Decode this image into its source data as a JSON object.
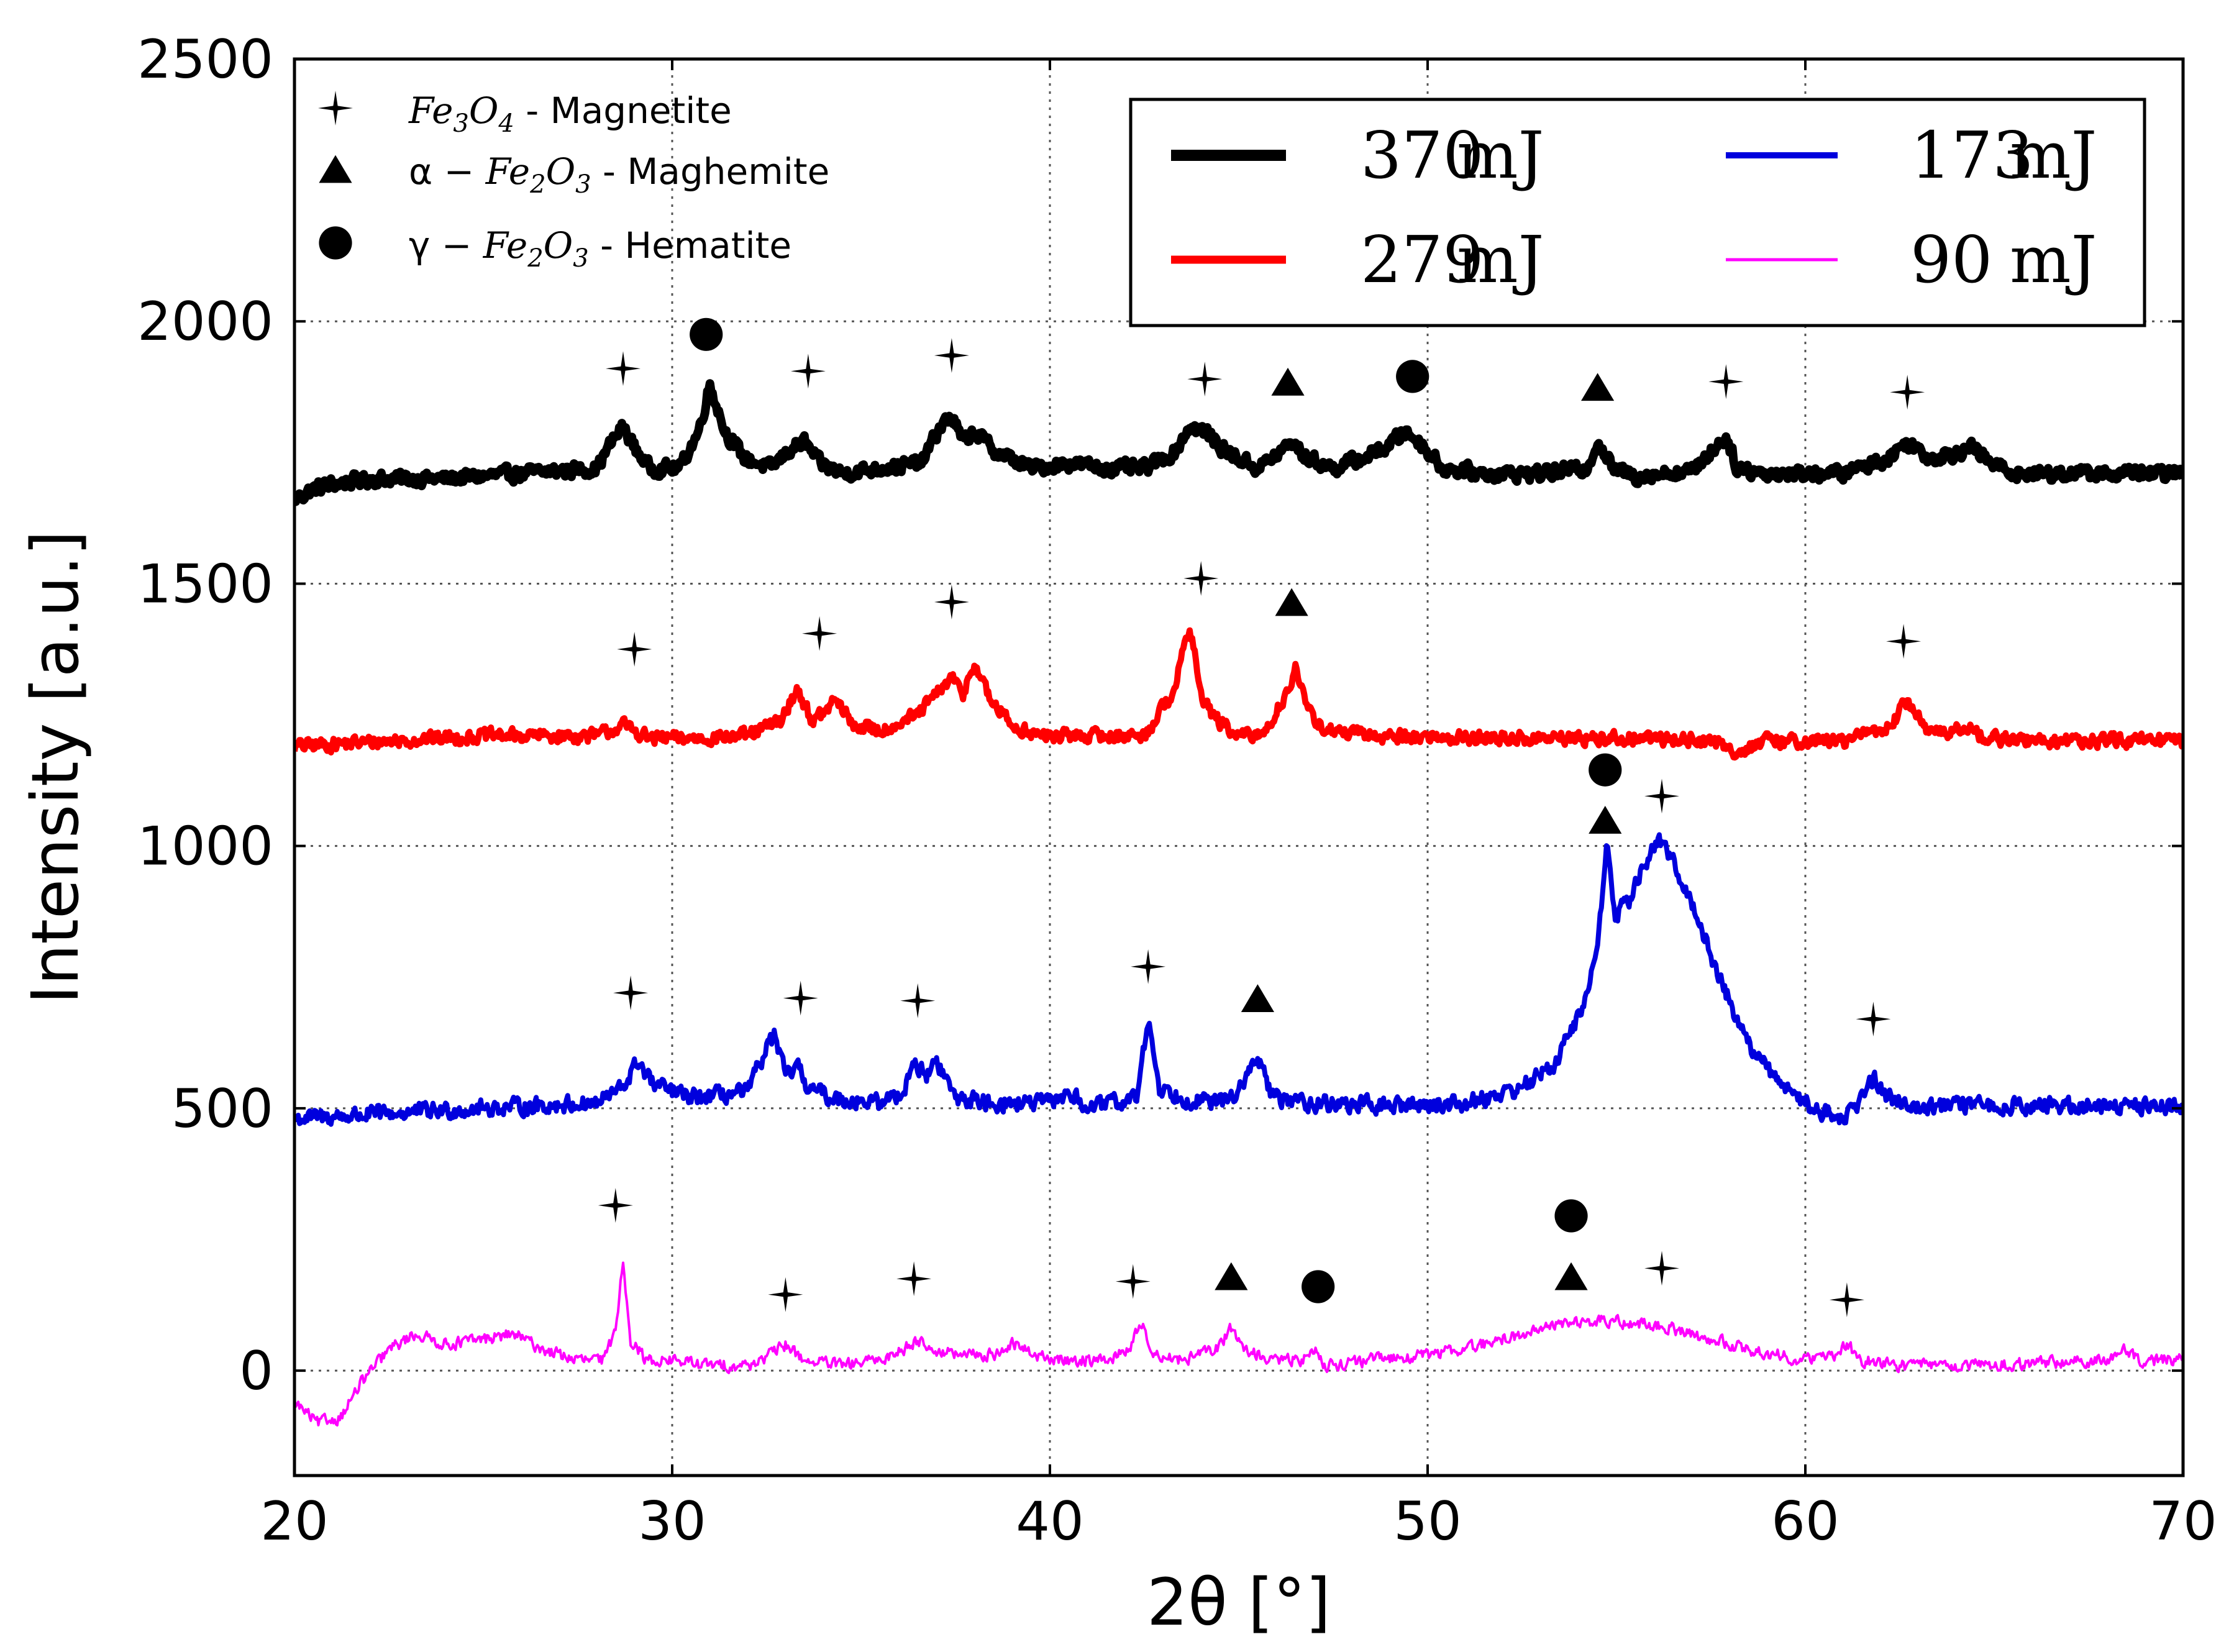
{
  "chart_data": {
    "type": "line",
    "xlabel": "2θ [°]",
    "ylabel": "Intensity [a.u.]",
    "xlim": [
      20,
      70
    ],
    "ylim": [
      -200,
      2500
    ],
    "xticks": [
      20,
      30,
      40,
      50,
      60,
      70
    ],
    "yticks": [
      0,
      500,
      1000,
      1500,
      2000,
      2500
    ],
    "grid": true,
    "legend_position": "top-right",
    "series": [
      {
        "name": "370 mJ",
        "label_num": "370",
        "label_unit": "mJ",
        "color": "#000000",
        "baseline": 1700,
        "noise": 18,
        "x": [
          20,
          20.5,
          21,
          22,
          24,
          26,
          28,
          28.4,
          28.7,
          29.0,
          29.4,
          30.2,
          30.7,
          31.0,
          31.4,
          31.9,
          32.6,
          33.2,
          33.5,
          33.9,
          34.5,
          35.5,
          36.6,
          37.1,
          37.4,
          37.7,
          38.0,
          38.6,
          39.5,
          40.5,
          41.5,
          42.5,
          43.3,
          43.7,
          44.1,
          44.7,
          45.5,
          46.1,
          46.4,
          46.8,
          47.5,
          48.3,
          48.9,
          49.4,
          49.8,
          50.4,
          51.5,
          53,
          54.2,
          54.5,
          54.9,
          55.5,
          57.0,
          57.6,
          57.9,
          58.2,
          59.0,
          61,
          62.2,
          62.7,
          63.3,
          64.0,
          64.4,
          64.9,
          65.6,
          67,
          70
        ],
        "y": [
          1660,
          1680,
          1690,
          1700,
          1700,
          1710,
          1720,
          1770,
          1800,
          1760,
          1720,
          1720,
          1790,
          1880,
          1790,
          1740,
          1720,
          1760,
          1770,
          1730,
          1710,
          1720,
          1730,
          1800,
          1820,
          1770,
          1790,
          1750,
          1720,
          1730,
          1720,
          1720,
          1750,
          1800,
          1790,
          1750,
          1720,
          1750,
          1770,
          1740,
          1720,
          1740,
          1760,
          1790,
          1770,
          1720,
          1710,
          1710,
          1720,
          1770,
          1720,
          1705,
          1715,
          1760,
          1780,
          1720,
          1710,
          1710,
          1740,
          1770,
          1740,
          1750,
          1760,
          1730,
          1710,
          1710,
          1710
        ]
      },
      {
        "name": "279 mJ",
        "label_num": "279",
        "label_unit": "mJ",
        "color": "#ff0000",
        "baseline": 1200,
        "noise": 18,
        "x": [
          20,
          25,
          28,
          28.7,
          29.0,
          29.4,
          30.5,
          32,
          32.9,
          33.3,
          33.7,
          34.0,
          34.3,
          34.8,
          35.5,
          36.5,
          37.0,
          37.4,
          37.7,
          38.0,
          38.4,
          39.0,
          39.7,
          41,
          42.5,
          43.3,
          43.7,
          44.0,
          44.3,
          44.9,
          45.6,
          46.2,
          46.5,
          46.8,
          47.3,
          48.5,
          52,
          56,
          57.5,
          58.2,
          59,
          61,
          62.3,
          62.7,
          63.1,
          63.7,
          64.2,
          64.8,
          66,
          70
        ],
        "y": [
          1190,
          1210,
          1210,
          1230,
          1220,
          1205,
          1205,
          1210,
          1240,
          1300,
          1240,
          1250,
          1280,
          1230,
          1220,
          1250,
          1290,
          1320,
          1290,
          1350,
          1280,
          1230,
          1210,
          1210,
          1210,
          1300,
          1420,
          1290,
          1250,
          1210,
          1210,
          1280,
          1340,
          1260,
          1220,
          1210,
          1205,
          1205,
          1200,
          1180,
          1200,
          1200,
          1230,
          1280,
          1230,
          1210,
          1230,
          1205,
          1200,
          1200
        ]
      },
      {
        "name": "173 mJ",
        "label_num": "173",
        "label_unit": "mJ",
        "color": "#0000dd",
        "baseline": 500,
        "noise": 22,
        "x": [
          20,
          25,
          28,
          28.7,
          29.1,
          29.5,
          30.5,
          32,
          32.4,
          32.7,
          33.0,
          33.3,
          33.6,
          34.2,
          35.5,
          36.1,
          36.4,
          36.7,
          37.0,
          37.5,
          38.5,
          40.0,
          40.5,
          41,
          42.3,
          42.6,
          42.9,
          43.5,
          44.5,
          45.1,
          45.5,
          45.9,
          47,
          49,
          51,
          52.5,
          53.3,
          53.9,
          54.3,
          54.6,
          54.75,
          54.95,
          55.3,
          55.7,
          56.1,
          56.6,
          57.2,
          57.9,
          58.5,
          59.2,
          60.2,
          61.0,
          61.5,
          61.8,
          62.2,
          63,
          66,
          70
        ],
        "y": [
          480,
          500,
          510,
          540,
          590,
          545,
          520,
          530,
          600,
          640,
          560,
          580,
          540,
          520,
          510,
          530,
          590,
          560,
          590,
          520,
          510,
          510,
          530,
          500,
          520,
          670,
          540,
          520,
          510,
          540,
          600,
          520,
          510,
          505,
          510,
          540,
          580,
          660,
          730,
          880,
          1000,
          870,
          890,
          960,
          1010,
          960,
          850,
          720,
          620,
          560,
          500,
          480,
          520,
          560,
          520,
          505,
          505,
          505
        ]
      },
      {
        "name": "90 mJ",
        "label_num": "90",
        "label_unit": "mJ",
        "color": "#ff00ff",
        "baseline": 0,
        "noise": 16,
        "x": [
          20,
          20.6,
          21.2,
          21.8,
          22.5,
          23.2,
          24,
          25,
          25.8,
          26.6,
          27.5,
          28.2,
          28.5,
          28.7,
          28.9,
          29.3,
          30,
          31,
          32,
          32.6,
          33.0,
          33.5,
          34.5,
          35.5,
          36.1,
          36.5,
          36.9,
          37.5,
          38.5,
          39.0,
          40,
          41.5,
          42.1,
          42.4,
          42.8,
          43.5,
          44.4,
          44.8,
          45.2,
          45.8,
          46.7,
          47.0,
          47.3,
          48.5,
          50,
          51.5,
          52.5,
          53.5,
          54.5,
          55.5,
          56.5,
          57.5,
          58.5,
          60,
          60.8,
          61.1,
          61.5,
          62.5,
          65,
          68.0,
          68.4,
          68.8,
          70
        ],
        "y": [
          -60,
          -100,
          -90,
          -20,
          40,
          70,
          50,
          60,
          70,
          40,
          20,
          20,
          80,
          210,
          60,
          20,
          20,
          10,
          10,
          30,
          50,
          20,
          10,
          20,
          40,
          60,
          40,
          30,
          30,
          50,
          20,
          20,
          40,
          90,
          30,
          20,
          40,
          80,
          40,
          20,
          20,
          40,
          10,
          20,
          30,
          50,
          70,
          90,
          95,
          90,
          80,
          60,
          40,
          20,
          30,
          50,
          20,
          10,
          10,
          20,
          40,
          20,
          20
        ]
      }
    ],
    "phase_legend": [
      {
        "symbol": "star",
        "prefix": "",
        "formula": "Fe3O4",
        "suffix": " - Magnetite"
      },
      {
        "symbol": "triangle",
        "prefix": "α − ",
        "formula": "Fe2O3",
        "suffix": " - Maghemite"
      },
      {
        "symbol": "circle",
        "prefix": "γ − ",
        "formula": "Fe2O3",
        "suffix": " - Hematite"
      }
    ],
    "phase_markers": [
      {
        "series": "370 mJ",
        "symbol": "star",
        "x": 28.7,
        "y": 1910
      },
      {
        "series": "370 mJ",
        "symbol": "circle",
        "x": 30.9,
        "y": 1975
      },
      {
        "series": "370 mJ",
        "symbol": "star",
        "x": 33.6,
        "y": 1905
      },
      {
        "series": "370 mJ",
        "symbol": "star",
        "x": 37.4,
        "y": 1935
      },
      {
        "series": "370 mJ",
        "symbol": "star",
        "x": 44.1,
        "y": 1890
      },
      {
        "series": "370 mJ",
        "symbol": "triangle",
        "x": 46.3,
        "y": 1885
      },
      {
        "series": "370 mJ",
        "symbol": "circle",
        "x": 49.6,
        "y": 1895
      },
      {
        "series": "370 mJ",
        "symbol": "triangle",
        "x": 54.5,
        "y": 1875
      },
      {
        "series": "370 mJ",
        "symbol": "star",
        "x": 57.9,
        "y": 1885
      },
      {
        "series": "370 mJ",
        "symbol": "star",
        "x": 62.7,
        "y": 1865
      },
      {
        "series": "279 mJ",
        "symbol": "star",
        "x": 29.0,
        "y": 1375
      },
      {
        "series": "279 mJ",
        "symbol": "star",
        "x": 33.9,
        "y": 1405
      },
      {
        "series": "279 mJ",
        "symbol": "star",
        "x": 37.4,
        "y": 1465
      },
      {
        "series": "279 mJ",
        "symbol": "star",
        "x": 44.0,
        "y": 1510
      },
      {
        "series": "279 mJ",
        "symbol": "triangle",
        "x": 46.4,
        "y": 1465
      },
      {
        "series": "279 mJ",
        "symbol": "star",
        "x": 62.6,
        "y": 1390
      },
      {
        "series": "173 mJ",
        "symbol": "star",
        "x": 28.9,
        "y": 720
      },
      {
        "series": "173 mJ",
        "symbol": "star",
        "x": 33.4,
        "y": 710
      },
      {
        "series": "173 mJ",
        "symbol": "star",
        "x": 36.5,
        "y": 705
      },
      {
        "series": "173 mJ",
        "symbol": "star",
        "x": 42.6,
        "y": 770
      },
      {
        "series": "173 mJ",
        "symbol": "triangle",
        "x": 45.5,
        "y": 710
      },
      {
        "series": "173 mJ",
        "symbol": "circle",
        "x": 54.7,
        "y": 1145
      },
      {
        "series": "173 mJ",
        "symbol": "triangle",
        "x": 54.7,
        "y": 1050
      },
      {
        "series": "173 mJ",
        "symbol": "star",
        "x": 56.2,
        "y": 1095
      },
      {
        "series": "173 mJ",
        "symbol": "star",
        "x": 61.8,
        "y": 670
      },
      {
        "series": "90 mJ",
        "symbol": "star",
        "x": 28.5,
        "y": 315
      },
      {
        "series": "90 mJ",
        "symbol": "star",
        "x": 33.0,
        "y": 145
      },
      {
        "series": "90 mJ",
        "symbol": "star",
        "x": 36.4,
        "y": 175
      },
      {
        "series": "90 mJ",
        "symbol": "star",
        "x": 42.2,
        "y": 170
      },
      {
        "series": "90 mJ",
        "symbol": "triangle",
        "x": 44.8,
        "y": 180
      },
      {
        "series": "90 mJ",
        "symbol": "circle",
        "x": 47.1,
        "y": 160
      },
      {
        "series": "90 mJ",
        "symbol": "circle",
        "x": 53.8,
        "y": 295
      },
      {
        "series": "90 mJ",
        "symbol": "triangle",
        "x": 53.8,
        "y": 180
      },
      {
        "series": "90 mJ",
        "symbol": "star",
        "x": 56.2,
        "y": 195
      },
      {
        "series": "90 mJ",
        "symbol": "star",
        "x": 61.1,
        "y": 135
      }
    ]
  }
}
